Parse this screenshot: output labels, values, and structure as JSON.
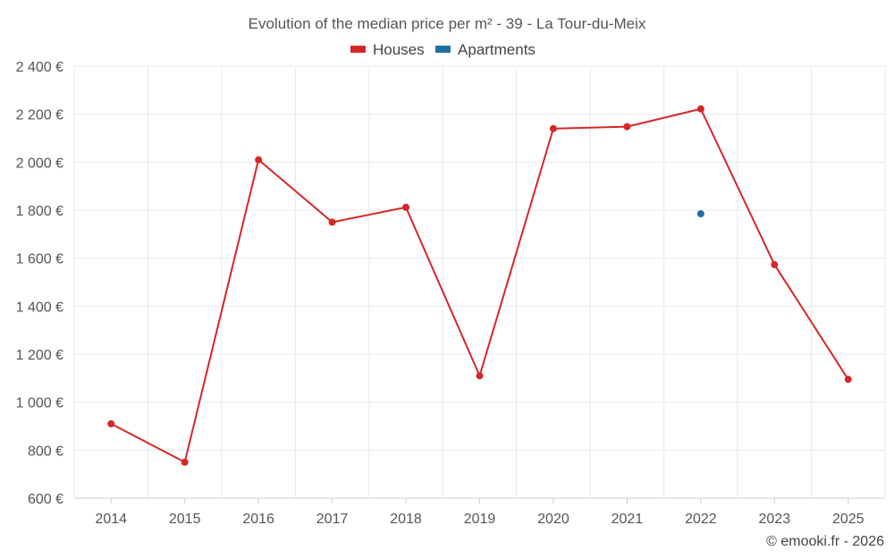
{
  "chart_data": {
    "type": "line",
    "title": "Evolution of the median price per m² - 39 - La Tour-du-Meix",
    "xlabel": "",
    "ylabel": "",
    "categories": [
      "2014",
      "2015",
      "2016",
      "2017",
      "2018",
      "2019",
      "2020",
      "2021",
      "2022",
      "2023",
      "2025"
    ],
    "ylim": [
      600,
      2400
    ],
    "yticks": [
      600,
      800,
      1000,
      1200,
      1400,
      1600,
      1800,
      2000,
      2200,
      2400
    ],
    "ytick_labels": [
      "600 €",
      "800 €",
      "1 000 €",
      "1 200 €",
      "1 400 €",
      "1 600 €",
      "1 800 €",
      "2 000 €",
      "2 200 €",
      "2 400 €"
    ],
    "grid": true,
    "legend_position": "top-center",
    "series": [
      {
        "name": "Houses",
        "color": "#d62728",
        "values": [
          910,
          750,
          2010,
          1750,
          1812,
          1110,
          2140,
          2148,
          2222,
          1573,
          1095
        ]
      },
      {
        "name": "Apartments",
        "color": "#1f6fa0",
        "values": [
          null,
          null,
          null,
          null,
          null,
          null,
          null,
          null,
          1785,
          null,
          null
        ]
      }
    ],
    "credit": "© emooki.fr - 2026"
  }
}
